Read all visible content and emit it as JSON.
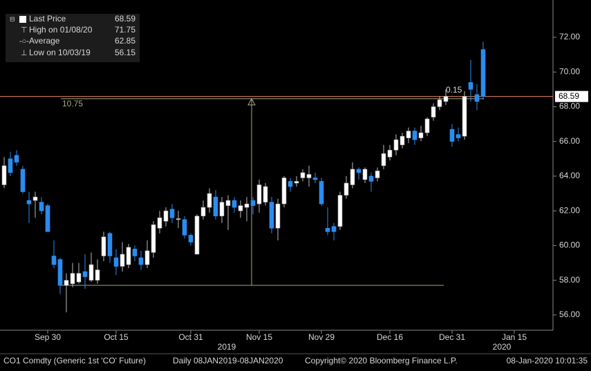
{
  "chart_data": {
    "type": "candlestick",
    "categories": [
      null,
      null,
      null,
      null,
      null,
      null,
      null,
      "Sep 30",
      null,
      null,
      null,
      null,
      null,
      null,
      null,
      null,
      null,
      null,
      "Oct 15",
      null,
      null,
      null,
      null,
      null,
      null,
      null,
      null,
      null,
      null,
      null,
      "Oct 31",
      null,
      null,
      null,
      null,
      null,
      null,
      null,
      null,
      null,
      null,
      "Nov 15",
      null,
      null,
      null,
      null,
      null,
      null,
      null,
      null,
      null,
      "Nov 29",
      null,
      null,
      null,
      null,
      null,
      null,
      null,
      null,
      null,
      null,
      "Dec 16",
      null,
      null,
      null,
      null,
      null,
      null,
      null,
      null,
      null,
      "Dec 31",
      null,
      null,
      null,
      null,
      null,
      null,
      null,
      null,
      null,
      "Jan 15",
      null,
      null,
      null,
      null,
      null
    ],
    "open": [
      63.5,
      65.0,
      65.2,
      64.4,
      62.6,
      62.6,
      62.5,
      62.3,
      59.4,
      59.2,
      57.7,
      57.8,
      57.9,
      58.5,
      58.0,
      58.0,
      59.4,
      60.7,
      59.3,
      58.8,
      58.9,
      59.8,
      59.3,
      58.9,
      59.6,
      61.0,
      61.4,
      62.1,
      61.5,
      61.5,
      60.6,
      59.5,
      61.7,
      62.2,
      62.8,
      61.7,
      62.3,
      62.6,
      62.0,
      62.2,
      62.6,
      62.4,
      62.5,
      62.5,
      61.0,
      62.4,
      63.7,
      63.6,
      63.9,
      63.9,
      63.9,
      63.7,
      61.0,
      61.1,
      61.1,
      62.9,
      63.5,
      64.4,
      63.8,
      64.0,
      63.9,
      64.6,
      65.1,
      65.5,
      65.8,
      66.2,
      66.6,
      66.2,
      66.5,
      67.4,
      68.0,
      68.3,
      66.7,
      66.4,
      66.3,
      69.4,
      68.7,
      71.3,
      null,
      null,
      null,
      null,
      null,
      null,
      null,
      null,
      null,
      null
    ],
    "high": [
      65.1,
      65.4,
      65.5,
      64.6,
      63.1,
      63.1,
      62.8,
      62.4,
      60.3,
      59.3,
      58.4,
      59.0,
      59.0,
      59.5,
      59.6,
      59.2,
      60.8,
      60.8,
      59.8,
      60.2,
      60.1,
      60.0,
      59.7,
      60.3,
      61.4,
      62.0,
      62.2,
      62.4,
      62.0,
      61.7,
      60.7,
      61.8,
      62.6,
      63.3,
      63.2,
      62.8,
      62.9,
      62.8,
      62.6,
      62.8,
      62.8,
      63.8,
      63.6,
      62.8,
      62.7,
      64.0,
      63.9,
      64.0,
      64.4,
      64.6,
      64.2,
      63.9,
      62.2,
      61.3,
      63.1,
      64.0,
      64.8,
      64.5,
      64.5,
      64.2,
      64.5,
      65.8,
      65.8,
      66.4,
      66.5,
      66.8,
      66.8,
      66.9,
      67.4,
      68.2,
      68.6,
      69.0,
      67.0,
      66.8,
      68.9,
      70.7,
      69.3,
      71.75,
      null,
      null,
      null,
      null,
      null,
      null,
      null,
      null,
      null,
      null
    ],
    "low": [
      63.3,
      64.0,
      64.6,
      63.0,
      61.3,
      61.6,
      61.8,
      60.8,
      58.7,
      57.2,
      56.15,
      57.6,
      57.8,
      57.5,
      57.9,
      57.8,
      59.1,
      59.0,
      58.3,
      58.5,
      58.7,
      59.1,
      58.6,
      58.7,
      59.3,
      60.7,
      61.1,
      61.3,
      61.0,
      60.4,
      60.0,
      59.5,
      61.5,
      61.9,
      61.5,
      61.3,
      60.9,
      61.9,
      61.6,
      61.4,
      61.8,
      61.9,
      62.3,
      60.7,
      60.3,
      62.2,
      63.1,
      63.4,
      63.7,
      63.4,
      63.6,
      62.3,
      60.6,
      60.3,
      60.9,
      62.7,
      63.3,
      63.8,
      63.6,
      63.1,
      63.7,
      64.4,
      64.9,
      65.2,
      65.6,
      65.9,
      65.8,
      66.0,
      66.3,
      67.2,
      67.8,
      68.1,
      65.7,
      66.0,
      66.1,
      68.3,
      67.8,
      68.4,
      null,
      null,
      null,
      null,
      null,
      null,
      null,
      null,
      null,
      null
    ],
    "close": [
      64.6,
      64.2,
      64.8,
      63.1,
      62.4,
      62.8,
      62.0,
      60.8,
      58.9,
      57.7,
      58.0,
      58.4,
      58.4,
      58.2,
      58.9,
      58.6,
      60.5,
      59.4,
      58.8,
      59.5,
      59.9,
      59.4,
      58.9,
      59.7,
      61.2,
      61.6,
      62.0,
      61.6,
      61.55,
      60.6,
      60.2,
      61.7,
      62.2,
      63.0,
      61.7,
      62.5,
      62.6,
      62.2,
      62.3,
      62.4,
      62.3,
      63.5,
      63.4,
      61.0,
      62.4,
      63.9,
      63.4,
      63.7,
      64.2,
      64.1,
      63.8,
      62.4,
      60.8,
      60.8,
      62.9,
      63.6,
      64.4,
      64.2,
      64.4,
      63.7,
      64.3,
      65.3,
      65.5,
      66.1,
      66.3,
      66.6,
      66.1,
      66.5,
      67.3,
      68.0,
      68.4,
      68.6,
      66.0,
      66.2,
      68.6,
      69.0,
      68.3,
      68.59,
      null,
      null,
      null,
      null,
      null,
      null,
      null,
      null,
      null,
      null
    ],
    "up_color": "#ffffff",
    "down_color": "#2a8cf0",
    "ylim": [
      55.12,
      74.15
    ],
    "yticks": [
      {
        "value": 56,
        "label": "56.00"
      },
      {
        "value": 58,
        "label": "58.00"
      },
      {
        "value": 60,
        "label": "60.00"
      },
      {
        "value": 62,
        "label": "62.00"
      },
      {
        "value": 64,
        "label": "64.00"
      },
      {
        "value": 66,
        "label": "66.00"
      },
      {
        "value": 68,
        "label": "68.00"
      },
      {
        "value": 70,
        "label": "70.00"
      },
      {
        "value": 72,
        "label": "72.00"
      }
    ],
    "years": [
      "2019",
      "2020"
    ],
    "last_price": 68.59,
    "legend": [
      {
        "name": "Last Price",
        "value": 68.59
      },
      {
        "name": "High on 01/08/20",
        "value": 71.75
      },
      {
        "name": "Average",
        "value": 62.85
      },
      {
        "name": "Low on 10/03/19",
        "value": 56.15
      }
    ],
    "measure": {
      "difference": 10.75,
      "from": 57.71,
      "to": 68.46,
      "gap": 0.15
    },
    "footer": [
      "CO1 Comdty (Generic 1st 'CO' Future)",
      "Daily 08JAN2019-08JAN2020",
      "Copyright© 2020 Bloomberg Finance L.P.",
      "08-Jan-2020 10:01:35"
    ]
  }
}
